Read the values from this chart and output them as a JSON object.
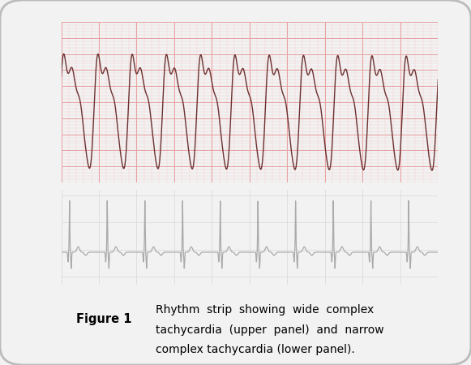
{
  "fig_width": 5.81,
  "fig_height": 4.5,
  "dpi": 100,
  "bg_color": "#f2f2f2",
  "upper_panel": {
    "bg_color": "#fce8e8",
    "grid_major_color": "#e8a0a0",
    "grid_minor_color": "#f5cccc",
    "line_color": "#6b3030",
    "line_width": 1.0,
    "n_cycles": 11
  },
  "lower_panel": {
    "bg_color": "#ffffff",
    "grid_major_color": "#d8d8d8",
    "grid_minor_color": "#eeeeee",
    "line_color": "#aaaaaa",
    "line_width": 0.9,
    "n_beats": 10
  },
  "figure_label": "Figure 1",
  "caption_line1": "Rhythm  strip  showing  wide  complex",
  "caption_line2": "tachycardia  (upper  panel)  and  narrow",
  "caption_line3": "complex tachycardia (lower panel).",
  "caption_fontsize": 10.0,
  "label_fontsize": 10.5
}
